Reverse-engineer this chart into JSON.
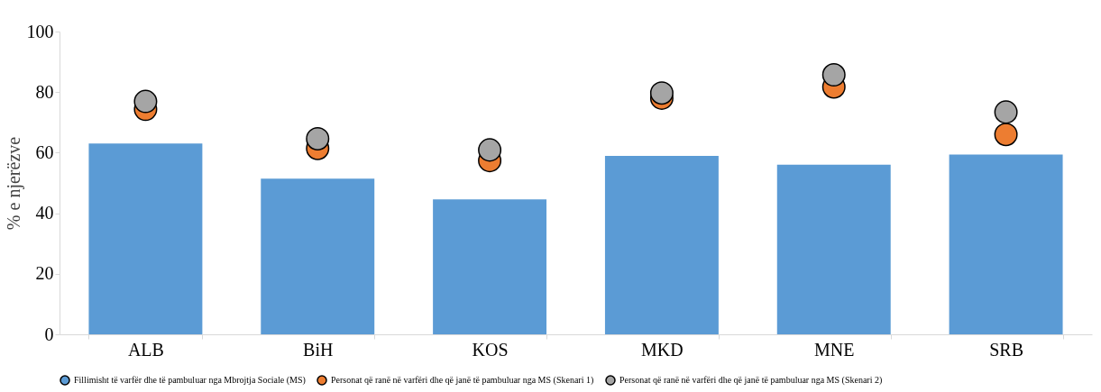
{
  "chart_data": {
    "type": "bar",
    "ylabel": "% e njerëzve",
    "categories": [
      "ALB",
      "BiH",
      "KOS",
      "MKD",
      "MNE",
      "SRB"
    ],
    "series": [
      {
        "name": "Fillimisht të varfër dhe të pambuluar nga Mbrojtja Sociale (MS)",
        "color": "#5b9bd5",
        "values": [
          63,
          51.4,
          44.6,
          58.9,
          56,
          59.4
        ]
      },
      {
        "name": "Personat që ranë në varfëri dhe që janë të pambuluar nga MS (Skenari 1)",
        "color": "#ed7d31",
        "type": "scatter",
        "values": [
          74.3,
          61.4,
          57.4,
          78,
          81.7,
          66
        ]
      },
      {
        "name": "Personat që ranë në varfëri dhe që janë të pambuluar nga MS (Skenari 2)",
        "color": "#a5a5a5",
        "type": "scatter",
        "values": [
          76.9,
          64.6,
          60.9,
          79.7,
          85.7,
          73.4
        ]
      }
    ],
    "ylim": [
      0,
      100
    ],
    "yticks": [
      0,
      20,
      40,
      60,
      80,
      100
    ],
    "grid": false,
    "legend": "bottom",
    "marker": "circle"
  }
}
